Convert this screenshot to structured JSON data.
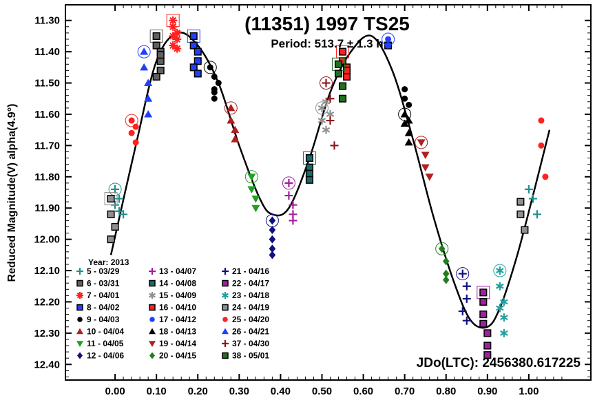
{
  "chart_data": {
    "type": "scatter",
    "title": "(11351) 1997 TS25",
    "subtitle": "Period: 513.7 ± 1.3 h",
    "ylabel": "Reduced Magnitude(V) alpha(4.9°)",
    "epoch_label": "JDo(LTC): 2456380.617225",
    "legend_title": "Year: 2013",
    "xlim": [
      -0.12,
      1.15
    ],
    "ylim": [
      11.25,
      12.45
    ],
    "y_inverted": true,
    "x_ticks": [
      "0.00",
      "0.10",
      "0.20",
      "0.30",
      "0.40",
      "0.50",
      "0.60",
      "0.70",
      "0.80",
      "0.90",
      "1.00"
    ],
    "y_ticks": [
      "11.30",
      "11.40",
      "11.50",
      "11.60",
      "11.70",
      "11.80",
      "11.90",
      "12.00",
      "12.10",
      "12.20",
      "12.30",
      "12.40"
    ],
    "fit_curve": {
      "x": [
        -0.01,
        0.05,
        0.1,
        0.15,
        0.2,
        0.25,
        0.3,
        0.35,
        0.38,
        0.42,
        0.47,
        0.52,
        0.57,
        0.62,
        0.67,
        0.72,
        0.77,
        0.82,
        0.86,
        0.9,
        0.93,
        0.97,
        1.01,
        1.05
      ],
      "y": [
        12.05,
        11.7,
        11.43,
        11.34,
        11.38,
        11.5,
        11.7,
        11.87,
        11.92,
        11.9,
        11.74,
        11.53,
        11.4,
        11.35,
        11.46,
        11.68,
        11.93,
        12.14,
        12.26,
        12.28,
        12.22,
        12.06,
        11.86,
        11.65
      ]
    },
    "series": [
      {
        "name": "5 - 03/29",
        "marker": "plus",
        "color": "#1f8f8f",
        "x": [
          0.0,
          0.01,
          0.02,
          0.0,
          0.01,
          1.0,
          1.01,
          1.02
        ],
        "y": [
          11.84,
          11.87,
          11.92,
          11.89,
          11.91,
          11.84,
          11.87,
          11.92
        ]
      },
      {
        "name": "6 - 03/31",
        "marker": "square",
        "color": "#606060",
        "x": [
          0.1,
          0.1,
          0.11,
          0.11,
          0.11,
          0.1,
          0.11
        ],
        "y": [
          11.35,
          11.38,
          11.4,
          11.43,
          11.46,
          11.48,
          11.41
        ]
      },
      {
        "name": "7 - 04/01",
        "marker": "star",
        "color": "#ff2020",
        "x": [
          0.14,
          0.14,
          0.15,
          0.15,
          0.14,
          0.15,
          0.14
        ],
        "y": [
          11.3,
          11.32,
          11.34,
          11.36,
          11.38,
          11.39,
          11.35
        ]
      },
      {
        "name": "8 - 04/02",
        "marker": "square",
        "color": "#2040ff",
        "x": [
          0.19,
          0.19,
          0.2,
          0.2,
          0.19,
          0.2,
          0.66
        ],
        "y": [
          11.35,
          11.38,
          11.4,
          11.43,
          11.45,
          11.47,
          11.38
        ]
      },
      {
        "name": "9 - 04/03",
        "marker": "circle",
        "color": "#000000",
        "x": [
          0.23,
          0.24,
          0.24,
          0.24,
          0.25,
          0.24,
          0.7,
          0.7,
          0.71
        ],
        "y": [
          11.45,
          11.48,
          11.52,
          11.55,
          11.5,
          11.53,
          11.52,
          11.55,
          11.57
        ]
      },
      {
        "name": "10 - 04/04",
        "marker": "triangle",
        "color": "#b02020",
        "x": [
          0.28,
          0.28,
          0.29,
          0.29
        ],
        "y": [
          11.58,
          11.62,
          11.65,
          11.68
        ]
      },
      {
        "name": "11 - 04/05",
        "marker": "tridown",
        "color": "#20a020",
        "x": [
          0.33,
          0.33,
          0.34,
          0.34
        ],
        "y": [
          11.8,
          11.84,
          11.87,
          11.9
        ]
      },
      {
        "name": "12 - 04/06",
        "marker": "diamond",
        "color": "#101080",
        "x": [
          0.38,
          0.38,
          0.38,
          0.38,
          0.38
        ],
        "y": [
          11.94,
          11.97,
          12.0,
          12.03,
          12.05
        ]
      },
      {
        "name": "13 - 04/07",
        "marker": "plus",
        "color": "#a020a0",
        "x": [
          0.42,
          0.42,
          0.43,
          0.43,
          0.43
        ],
        "y": [
          11.82,
          11.86,
          11.89,
          11.92,
          11.94
        ]
      },
      {
        "name": "14 - 04/08",
        "marker": "square",
        "color": "#1a6a6a",
        "x": [
          0.47,
          0.47,
          0.47,
          0.47
        ],
        "y": [
          11.74,
          11.77,
          11.79,
          11.81
        ]
      },
      {
        "name": "15 - 04/09",
        "marker": "asterisk",
        "color": "#909090",
        "x": [
          0.5,
          0.5,
          0.51,
          0.51,
          0.52
        ],
        "y": [
          11.58,
          11.62,
          11.56,
          11.65,
          11.6
        ]
      },
      {
        "name": "16 - 04/10",
        "marker": "square",
        "color": "#ff2020",
        "x": [
          0.55,
          0.55,
          0.56,
          0.56,
          0.56
        ],
        "y": [
          11.4,
          11.43,
          11.45,
          11.48,
          11.46
        ]
      },
      {
        "name": "17 - 04/12",
        "marker": "circle",
        "color": "#2040ff",
        "x": [
          0.66,
          0.66
        ],
        "y": [
          11.36,
          11.38
        ]
      },
      {
        "name": "18 - 04/13",
        "marker": "triangle",
        "color": "#000000",
        "x": [
          0.7,
          0.7,
          0.71,
          0.71,
          0.71
        ],
        "y": [
          11.6,
          11.63,
          11.66,
          11.69,
          11.62
        ]
      },
      {
        "name": "19 - 04/14",
        "marker": "tridown",
        "color": "#b02020",
        "x": [
          0.74,
          0.75,
          0.75,
          0.76
        ],
        "y": [
          11.69,
          11.73,
          11.77,
          11.8
        ]
      },
      {
        "name": "20 - 04/15",
        "marker": "diamond",
        "color": "#208020",
        "x": [
          0.79,
          0.8,
          0.8,
          0.8
        ],
        "y": [
          12.03,
          12.07,
          12.11,
          12.13
        ]
      },
      {
        "name": "21 - 04/16",
        "marker": "plus",
        "color": "#101080",
        "x": [
          0.84,
          0.85,
          0.85,
          0.84,
          0.85
        ],
        "y": [
          12.11,
          12.15,
          12.19,
          12.23,
          12.26
        ]
      },
      {
        "name": "22 - 04/17",
        "marker": "square",
        "color": "#a020a0",
        "x": [
          0.89,
          0.89,
          0.89,
          0.89,
          0.9,
          0.9,
          0.9
        ],
        "y": [
          12.17,
          12.2,
          12.24,
          12.27,
          12.3,
          12.34,
          12.37
        ]
      },
      {
        "name": "23 - 04/18",
        "marker": "asterisk",
        "color": "#20a0a0",
        "x": [
          0.93,
          0.93,
          0.94,
          0.94,
          0.94,
          0.93
        ],
        "y": [
          12.1,
          12.15,
          12.2,
          12.25,
          12.3,
          12.22
        ]
      },
      {
        "name": "24 - 04/19",
        "marker": "square",
        "color": "#909090",
        "x": [
          -0.01,
          -0.01,
          0.0,
          -0.01,
          0.98,
          0.98,
          0.99
        ],
        "y": [
          11.87,
          11.92,
          11.96,
          12.0,
          11.88,
          11.92,
          11.97
        ]
      },
      {
        "name": "25 - 04/20",
        "marker": "circle",
        "color": "#ff2020",
        "x": [
          0.04,
          0.04,
          0.05,
          0.05,
          1.03,
          1.03,
          1.04
        ],
        "y": [
          11.62,
          11.66,
          11.69,
          11.64,
          11.62,
          11.7,
          11.8
        ]
      },
      {
        "name": "26 - 04/21",
        "marker": "triangle",
        "color": "#2040ff",
        "x": [
          0.07,
          0.07,
          0.08,
          0.08,
          0.08
        ],
        "y": [
          11.4,
          11.45,
          11.5,
          11.55,
          11.6
        ]
      },
      {
        "name": "37 - 04/30",
        "marker": "plus",
        "color": "#8b1a1a",
        "x": [
          0.51,
          0.52,
          0.52,
          0.53
        ],
        "y": [
          11.5,
          11.55,
          11.62,
          11.7
        ]
      },
      {
        "name": "38 - 05/01",
        "marker": "square",
        "color": "#207020",
        "x": [
          0.54,
          0.54,
          0.55,
          0.55
        ],
        "y": [
          11.44,
          11.47,
          11.51,
          11.55
        ]
      }
    ]
  }
}
